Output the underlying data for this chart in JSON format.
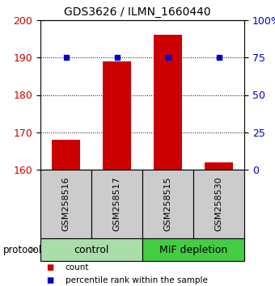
{
  "title": "GDS3626 / ILMN_1660440",
  "samples": [
    "GSM258516",
    "GSM258517",
    "GSM258515",
    "GSM258530"
  ],
  "bar_values": [
    168,
    189,
    196,
    162
  ],
  "bar_color": "#cc0000",
  "percentile_values": [
    75,
    75,
    75,
    75
  ],
  "percentile_color": "#0000cc",
  "left_ylim": [
    160,
    200
  ],
  "right_ylim": [
    0,
    100
  ],
  "left_yticks": [
    160,
    170,
    180,
    190,
    200
  ],
  "right_yticks": [
    0,
    25,
    50,
    75,
    100
  ],
  "right_yticklabels": [
    "0",
    "25",
    "50",
    "75",
    "100%"
  ],
  "groups": [
    {
      "label": "control",
      "indices": [
        0,
        1
      ],
      "color": "#aaddaa"
    },
    {
      "label": "MIF depletion",
      "indices": [
        2,
        3
      ],
      "color": "#44cc44"
    }
  ],
  "protocol_label": "protocol",
  "legend_items": [
    {
      "label": "count",
      "color": "#cc0000"
    },
    {
      "label": "percentile rank within the sample",
      "color": "#0000cc"
    }
  ],
  "bar_bottom": 160,
  "bar_width": 0.55,
  "grid_yticks": [
    170,
    180,
    190,
    200
  ],
  "background_color": "#ffffff"
}
